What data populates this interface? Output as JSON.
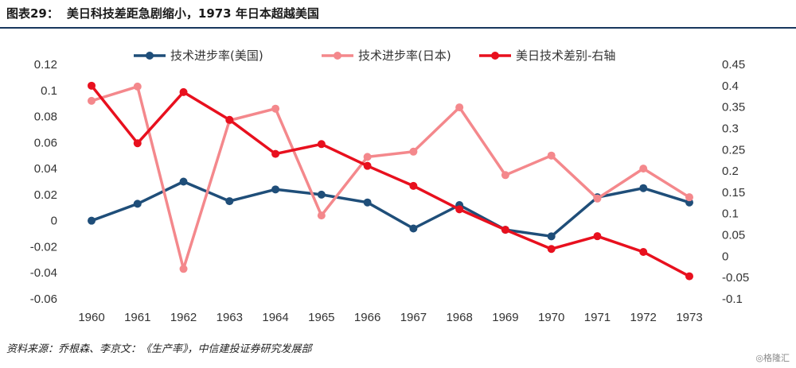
{
  "header": {
    "figure_label": "图表29：",
    "title": "美日科技差距急剧缩小，1973 年日本超越美国"
  },
  "footer": {
    "source": "资料来源：乔根森、李京文：《生产率》，中信建投证券研究发展部",
    "watermark": "◎格隆汇"
  },
  "chart_data": {
    "type": "line",
    "categories": [
      "1960",
      "1961",
      "1962",
      "1963",
      "1964",
      "1965",
      "1966",
      "1967",
      "1968",
      "1969",
      "1970",
      "1971",
      "1972",
      "1973"
    ],
    "left_axis": {
      "ylim": [
        -0.06,
        0.12
      ],
      "ticks": [
        "-0.06",
        "-0.04",
        "-0.02",
        "0",
        "0.02",
        "0.04",
        "0.06",
        "0.08",
        "0.1",
        "0.12"
      ]
    },
    "right_axis": {
      "ylim": [
        -0.1,
        0.45
      ],
      "ticks": [
        "-0.1",
        "-0.05",
        "0",
        "0.05",
        "0.1",
        "0.15",
        "0.2",
        "0.25",
        "0.3",
        "0.35",
        "0.4",
        "0.45"
      ]
    },
    "series": [
      {
        "name": "技术进步率(美国)",
        "axis": "left",
        "color": "#1f4e79",
        "values": [
          0.0,
          0.013,
          0.03,
          0.015,
          0.024,
          0.02,
          0.014,
          -0.006,
          0.012,
          -0.007,
          -0.012,
          0.018,
          0.025,
          0.014
        ]
      },
      {
        "name": "技术进步率(日本)",
        "axis": "left",
        "color": "#f4888c",
        "values": [
          0.092,
          0.103,
          -0.037,
          0.077,
          0.086,
          0.004,
          0.049,
          0.053,
          0.087,
          0.035,
          0.05,
          0.017,
          0.04,
          0.018
        ]
      },
      {
        "name": "美日技术差别-右轴",
        "axis": "right",
        "color": "#e8101e",
        "values": [
          0.4,
          0.265,
          0.385,
          0.32,
          0.24,
          0.263,
          0.212,
          0.165,
          0.11,
          0.062,
          0.017,
          0.047,
          0.01,
          -0.047
        ]
      }
    ],
    "legend_position": "top",
    "grid": false
  }
}
